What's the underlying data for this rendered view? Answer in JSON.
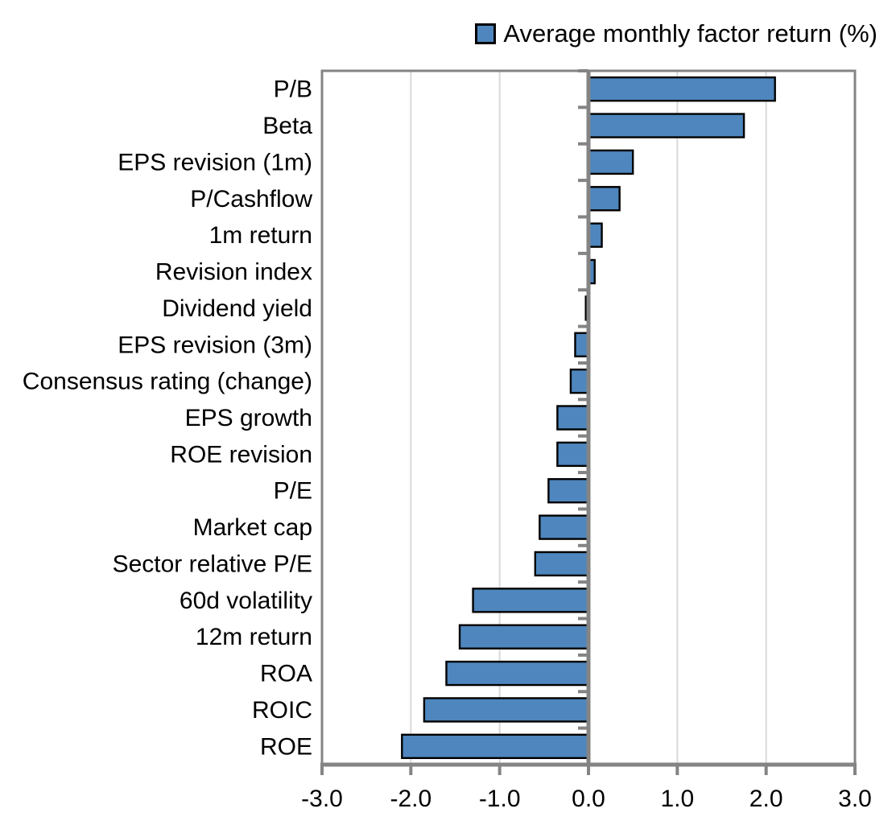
{
  "legend": {
    "label": "Average monthly factor return (%)"
  },
  "chart_data": {
    "type": "bar",
    "orientation": "horizontal",
    "title": "",
    "xlabel": "",
    "ylabel": "",
    "legend": "Average monthly factor return (%)",
    "legend_position": "top-right",
    "grid": true,
    "xlim": [
      -3.0,
      3.0
    ],
    "xticks": [
      "-3.0",
      "-2.0",
      "-1.0",
      "0.0",
      "1.0",
      "2.0",
      "3.0"
    ],
    "categories": [
      "P/B",
      "Beta",
      "EPS revision (1m)",
      "P/Cashflow",
      "1m return",
      "Revision index",
      "Dividend yield",
      "EPS revision (3m)",
      "Consensus rating (change)",
      "EPS growth",
      "ROE revision",
      "P/E",
      "Market cap",
      "Sector relative P/E",
      "60d volatility",
      "12m return",
      "ROA",
      "ROIC",
      "ROE"
    ],
    "values": [
      2.1,
      1.75,
      0.5,
      0.35,
      0.15,
      0.07,
      -0.03,
      -0.15,
      -0.2,
      -0.35,
      -0.35,
      -0.45,
      -0.55,
      -0.6,
      -1.3,
      -1.45,
      -1.6,
      -1.85,
      -2.1
    ],
    "colors": {
      "bar_fill": "#4E86BD",
      "bar_border": "#000000",
      "grid": "#D9D9D9",
      "axis": "#848484",
      "text": "#000000"
    }
  }
}
